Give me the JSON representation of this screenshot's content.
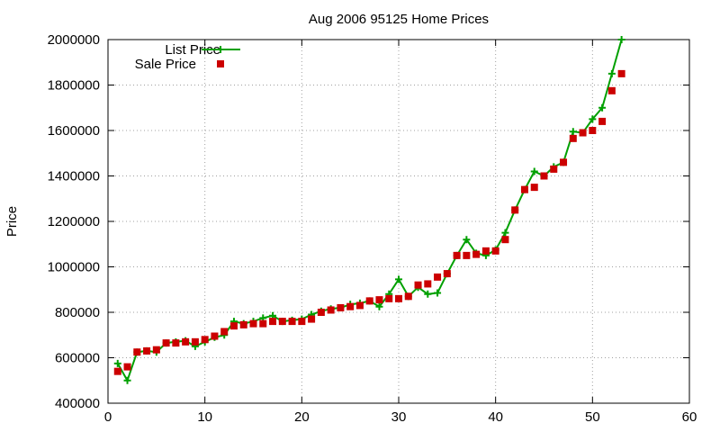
{
  "chart_data": {
    "type": "line",
    "title": "Aug 2006 95125 Home Prices",
    "xlabel": "",
    "ylabel": "Price",
    "xlim": [
      0,
      60
    ],
    "ylim": [
      400000,
      2000000
    ],
    "xticks": [
      0,
      10,
      20,
      30,
      40,
      50,
      60
    ],
    "yticks": [
      400000,
      600000,
      800000,
      1000000,
      1200000,
      1400000,
      1600000,
      1800000,
      2000000
    ],
    "grid": true,
    "legend_position": "top-left",
    "series": [
      {
        "name": "List Price",
        "style": "line-plus",
        "color": "#00a000",
        "x": [
          1,
          2,
          3,
          4,
          5,
          6,
          7,
          8,
          9,
          10,
          11,
          12,
          13,
          14,
          15,
          16,
          17,
          18,
          19,
          20,
          21,
          22,
          23,
          24,
          25,
          26,
          27,
          28,
          29,
          30,
          31,
          32,
          33,
          34,
          35,
          36,
          37,
          38,
          39,
          40,
          41,
          42,
          43,
          44,
          45,
          46,
          47,
          48,
          49,
          50,
          51,
          52,
          53
        ],
        "values": [
          575000,
          500000,
          625000,
          630000,
          625000,
          665000,
          670000,
          675000,
          650000,
          670000,
          690000,
          700000,
          760000,
          750000,
          760000,
          775000,
          785000,
          760000,
          765000,
          770000,
          790000,
          805000,
          815000,
          820000,
          835000,
          840000,
          850000,
          825000,
          880000,
          945000,
          870000,
          910000,
          880000,
          885000,
          970000,
          1050000,
          1120000,
          1060000,
          1050000,
          1075000,
          1150000,
          1250000,
          1340000,
          1420000,
          1400000,
          1440000,
          1460000,
          1595000,
          1590000,
          1650000,
          1700000,
          1850000,
          2000000
        ]
      },
      {
        "name": "Sale Price",
        "style": "square",
        "color": "#cc0000",
        "x": [
          1,
          2,
          3,
          4,
          5,
          6,
          7,
          8,
          9,
          10,
          11,
          12,
          13,
          14,
          15,
          16,
          17,
          18,
          19,
          20,
          21,
          22,
          23,
          24,
          25,
          26,
          27,
          28,
          29,
          30,
          31,
          32,
          33,
          34,
          35,
          36,
          37,
          38,
          39,
          40,
          41,
          42,
          43,
          44,
          45,
          46,
          47,
          48,
          49,
          50,
          51,
          52,
          53
        ],
        "values": [
          540000,
          560000,
          625000,
          630000,
          635000,
          665000,
          665000,
          670000,
          670000,
          680000,
          695000,
          715000,
          740000,
          745000,
          750000,
          750000,
          760000,
          760000,
          760000,
          760000,
          770000,
          800000,
          810000,
          820000,
          825000,
          830000,
          850000,
          855000,
          860000,
          860000,
          870000,
          920000,
          925000,
          955000,
          970000,
          1050000,
          1050000,
          1055000,
          1070000,
          1070000,
          1120000,
          1250000,
          1340000,
          1350000,
          1400000,
          1430000,
          1460000,
          1565000,
          1590000,
          1600000,
          1640000,
          1775000,
          1850000
        ]
      }
    ]
  }
}
